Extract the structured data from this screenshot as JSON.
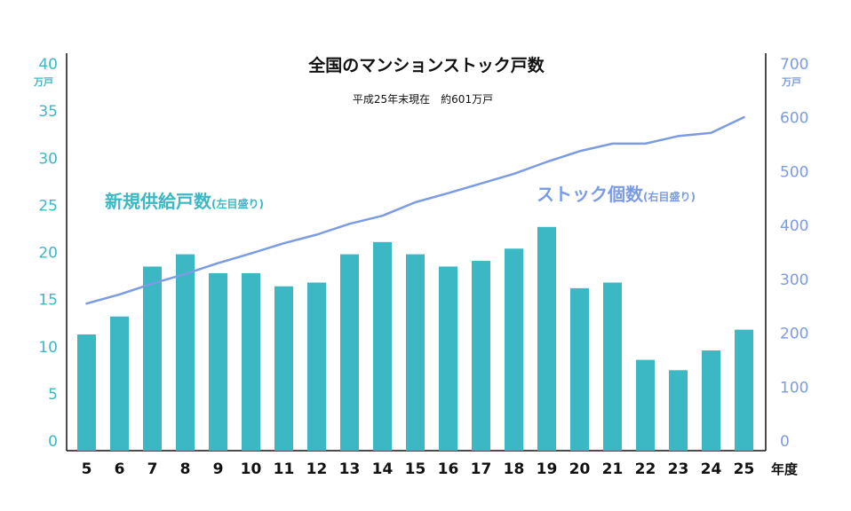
{
  "chart_data": {
    "type": "bar",
    "title": "全国のマンションストック戸数",
    "subtitle": "平成25年末現在　約601万戸",
    "categories": [
      "5",
      "6",
      "7",
      "8",
      "9",
      "10",
      "11",
      "12",
      "13",
      "14",
      "15",
      "16",
      "17",
      "18",
      "19",
      "20",
      "21",
      "22",
      "23",
      "24",
      "25"
    ],
    "x_unit": "年度",
    "y_left": {
      "ticks": [
        "0",
        "5",
        "10",
        "15",
        "20",
        "25",
        "30",
        "35",
        "40"
      ],
      "unit": "万戸",
      "ylim": [
        0,
        40
      ]
    },
    "y_right": {
      "ticks": [
        "0",
        "100",
        "200",
        "300",
        "400",
        "500",
        "600",
        "700"
      ],
      "unit": "万戸",
      "ylim": [
        0,
        700
      ]
    },
    "series": [
      {
        "name": "新規供給戸数",
        "axis": "left",
        "type": "bar",
        "color": "#3bb8c4",
        "values": [
          11.3,
          13.2,
          18.5,
          19.8,
          17.8,
          17.8,
          16.4,
          16.8,
          19.8,
          21.1,
          19.8,
          18.5,
          19.1,
          20.4,
          22.7,
          16.2,
          16.8,
          8.6,
          7.5,
          9.6,
          11.8
        ]
      },
      {
        "name": "ストック個数",
        "axis": "right",
        "type": "line",
        "color": "#7b9be3",
        "values": [
          255,
          272,
          292,
          310,
          330,
          348,
          367,
          383,
          403,
          418,
          443,
          460,
          478,
          496,
          518,
          538,
          552,
          552,
          566,
          572,
          601
        ]
      }
    ],
    "annotations": [
      {
        "main": "新規供給戸数",
        "sub": "(左目盛り)",
        "series": "新規供給戸数"
      },
      {
        "main": "ストック個数",
        "sub": "(右目盛り)",
        "series": "ストック個数"
      }
    ],
    "grid": false
  }
}
